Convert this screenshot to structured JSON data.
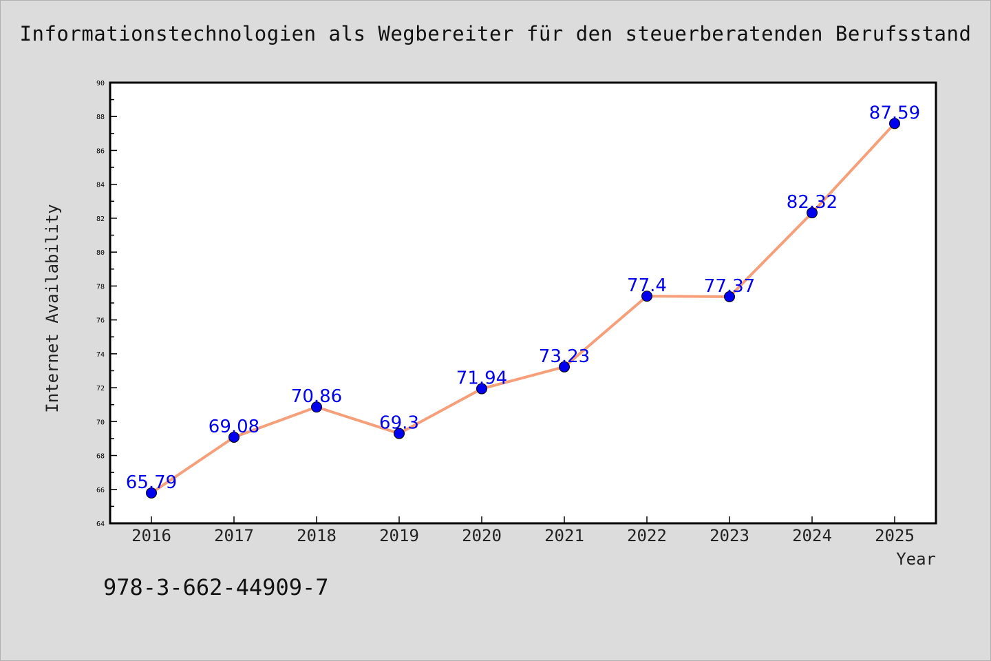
{
  "chart_data": {
    "type": "line",
    "title": "Informationstechnologien als Wegbereiter für den steuerberatenden Berufsstand",
    "xlabel": "Year",
    "ylabel": "Internet Availability",
    "categories": [
      "2016",
      "2017",
      "2018",
      "2019",
      "2020",
      "2021",
      "2022",
      "2023",
      "2024",
      "2025"
    ],
    "series": [
      {
        "values": [
          65.79,
          69.08,
          70.86,
          69.3,
          71.94,
          73.23,
          77.4,
          77.37,
          82.32,
          87.59
        ],
        "labels": [
          "65.79",
          "69.08",
          "70.86",
          "69.3",
          "71.94",
          "73.23",
          "77.4",
          "77.37",
          "82.32",
          "87.59"
        ]
      }
    ],
    "ylim": [
      64,
      90
    ],
    "yticks": [
      "64",
      "66",
      "68",
      "70",
      "72",
      "74",
      "76",
      "78",
      "80",
      "82",
      "84",
      "86",
      "88",
      "90"
    ],
    "grid": false,
    "line_color": "#f5a07a",
    "marker_color": "#0000ee",
    "label_color": "#0000ee"
  },
  "footer": {
    "isbn": "978-3-662-44909-7"
  }
}
